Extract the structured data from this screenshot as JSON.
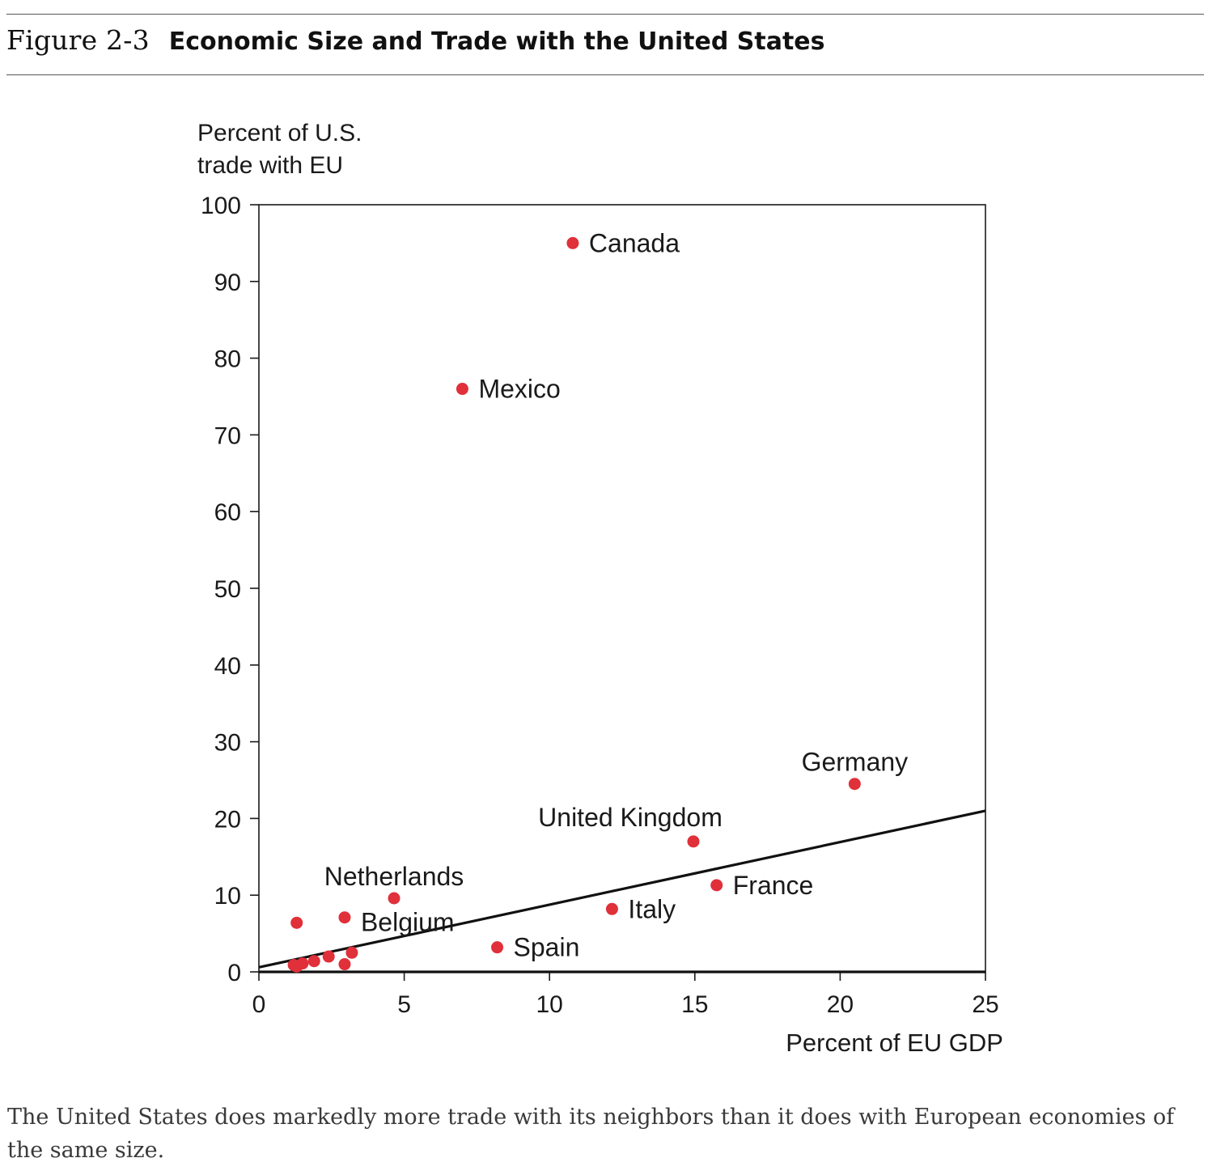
{
  "figure": {
    "label": "Figure 2-3",
    "title": "Economic Size and Trade with the United States",
    "caption": "The United States does markedly more trade with its neighbors than it does with European economies of the same size."
  },
  "chart_data": {
    "type": "scatter",
    "title": "",
    "ylabel_lines": [
      "Percent of U.S.",
      "trade with EU"
    ],
    "xlabel": "Percent of EU GDP",
    "xlim": [
      0,
      25
    ],
    "ylim": [
      0,
      100
    ],
    "xticks": [
      0,
      5,
      10,
      15,
      20,
      25
    ],
    "yticks": [
      0,
      10,
      20,
      30,
      40,
      50,
      60,
      70,
      80,
      90,
      100
    ],
    "grid": false,
    "marker_color": "#e0303a",
    "line_color": "#111111",
    "trend_line": {
      "x": [
        0,
        25
      ],
      "y": [
        0.6,
        21
      ]
    },
    "points": [
      {
        "x": 10.8,
        "y": 95,
        "label": "Canada",
        "label_pos": "right"
      },
      {
        "x": 7.0,
        "y": 76,
        "label": "Mexico",
        "label_pos": "right"
      },
      {
        "x": 20.5,
        "y": 24.5,
        "label": "Germany",
        "label_pos": "above"
      },
      {
        "x": 14.95,
        "y": 17,
        "label": "United Kingdom",
        "label_pos": "above-left"
      },
      {
        "x": 15.75,
        "y": 11.3,
        "label": "France",
        "label_pos": "right"
      },
      {
        "x": 12.15,
        "y": 8.2,
        "label": "Italy",
        "label_pos": "right"
      },
      {
        "x": 8.2,
        "y": 3.2,
        "label": "Spain",
        "label_pos": "right"
      },
      {
        "x": 4.65,
        "y": 9.6,
        "label": "Netherlands",
        "label_pos": "above"
      },
      {
        "x": 2.95,
        "y": 7.1,
        "label": "Belgium",
        "label_pos": "right-below"
      },
      {
        "x": 1.3,
        "y": 6.4,
        "label": ""
      },
      {
        "x": 3.2,
        "y": 2.5,
        "label": ""
      },
      {
        "x": 2.4,
        "y": 2.0,
        "label": ""
      },
      {
        "x": 1.9,
        "y": 1.4,
        "label": ""
      },
      {
        "x": 1.5,
        "y": 1.1,
        "label": ""
      },
      {
        "x": 1.2,
        "y": 0.9,
        "label": ""
      },
      {
        "x": 1.3,
        "y": 0.7,
        "label": ""
      },
      {
        "x": 2.95,
        "y": 1.0,
        "label": ""
      }
    ]
  }
}
